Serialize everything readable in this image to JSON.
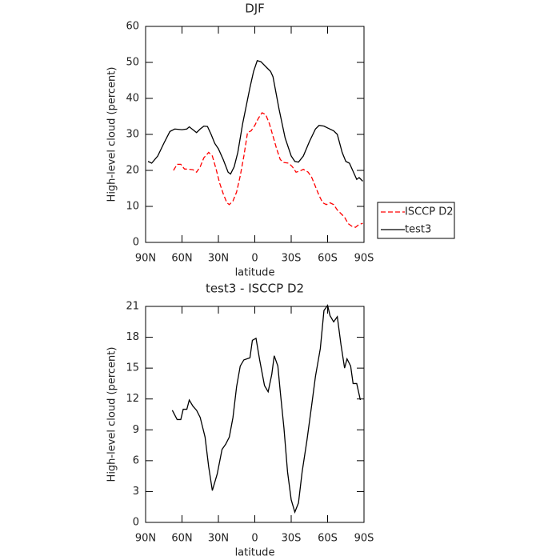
{
  "chart_data": [
    {
      "type": "line",
      "title": "DJF",
      "x_label": "latitude",
      "y_label": "High-level cloud (percent)",
      "xlim": [
        90,
        -90
      ],
      "xticks": [
        {
          "value": 90,
          "label": "90N"
        },
        {
          "value": 60,
          "label": "60N"
        },
        {
          "value": 30,
          "label": "30N"
        },
        0,
        {
          "value": -30,
          "label": "30S"
        },
        {
          "value": -60,
          "label": "60S"
        },
        {
          "value": -90,
          "label": "90S"
        }
      ],
      "ylim": [
        0,
        60
      ],
      "yticks": [
        0,
        10,
        20,
        30,
        40,
        50,
        60
      ],
      "legend": "right",
      "series": [
        {
          "name": "ISCCP D2",
          "color": "#ff0000",
          "dash": true,
          "x": [
            67,
            64,
            61,
            58,
            54,
            51,
            48,
            45,
            42,
            38,
            35,
            32,
            29,
            26,
            23,
            21,
            18,
            15,
            12,
            9,
            6,
            3,
            0,
            -3,
            -6,
            -9,
            -12,
            -15,
            -18,
            -21,
            -24,
            -28,
            -31,
            -34,
            -37,
            -40,
            -44,
            -47,
            -50,
            -53,
            -56,
            -59,
            -62,
            -65,
            -68,
            -71,
            -74,
            -77,
            -80,
            -83,
            -86,
            -89
          ],
          "values": [
            20,
            21.7,
            21.7,
            20.4,
            20.3,
            20.2,
            19.5,
            21,
            23.5,
            25,
            24,
            20.5,
            16.5,
            13.5,
            11,
            10.5,
            11.5,
            14,
            18.5,
            24,
            30.5,
            31,
            32.5,
            34.5,
            36,
            35.5,
            33,
            29.5,
            26,
            23,
            22.2,
            22,
            21,
            19.5,
            19.8,
            20.3,
            19.5,
            18,
            15.5,
            13,
            11,
            10.5,
            11,
            10.5,
            9,
            8,
            7,
            5.2,
            4.5,
            4.2,
            5,
            5.3
          ]
        },
        {
          "name": "test3",
          "color": "#000000",
          "dash": false,
          "x": [
            88,
            85,
            80,
            75,
            70,
            66,
            60,
            56,
            54,
            51,
            48,
            45,
            42,
            39,
            36,
            33,
            30,
            26,
            22,
            20,
            17,
            14,
            10,
            7,
            4,
            1,
            -2,
            -5,
            -10,
            -13,
            -15,
            -20,
            -25,
            -30,
            -33,
            -36,
            -40,
            -45,
            -50,
            -53,
            -57,
            -60,
            -65,
            -68,
            -72,
            -75,
            -78,
            -82,
            -84,
            -86,
            -89
          ],
          "values": [
            22.5,
            22,
            24,
            27.5,
            30.8,
            31.5,
            31.3,
            31.5,
            32.1,
            31.3,
            30.5,
            31.5,
            32.3,
            32.2,
            30,
            27.5,
            26,
            23,
            19.5,
            19,
            21,
            25,
            33,
            38,
            43,
            47.5,
            50.5,
            50.2,
            48.5,
            47.5,
            46,
            37,
            29,
            24,
            22.5,
            22.3,
            24,
            28,
            31.5,
            32.5,
            32.3,
            31.8,
            31,
            30,
            25,
            22.5,
            22,
            19,
            17.5,
            18,
            17
          ]
        }
      ]
    },
    {
      "type": "line",
      "title": "test3 - ISCCP D2",
      "x_label": "latitude",
      "y_label": "High-level cloud (percent)",
      "xlim": [
        90,
        -90
      ],
      "xticks": [
        {
          "value": 90,
          "label": "90N"
        },
        {
          "value": 60,
          "label": "60N"
        },
        {
          "value": 30,
          "label": "30N"
        },
        0,
        {
          "value": -30,
          "label": "30S"
        },
        {
          "value": -60,
          "label": "60S"
        },
        {
          "value": -90,
          "label": "90S"
        }
      ],
      "ylim": [
        0,
        21
      ],
      "yticks": [
        0,
        3,
        6,
        9,
        12,
        15,
        18,
        21
      ],
      "series": [
        {
          "color": "#000000",
          "dash": false,
          "x": [
            68,
            64,
            61,
            59,
            56,
            54,
            51,
            48,
            45,
            41,
            38,
            35,
            31,
            27,
            24,
            21,
            18,
            15,
            12,
            9,
            4,
            2,
            -1,
            -4,
            -8,
            -11,
            -14,
            -16,
            -19,
            -21,
            -24,
            -27,
            -30,
            -33,
            -36,
            -39,
            -43,
            -47,
            -50,
            -54,
            -57,
            -60,
            -62,
            -65,
            -68,
            -71,
            -74,
            -76,
            -79,
            -81,
            -84,
            -87
          ],
          "values": [
            10.9,
            10,
            10,
            11,
            11,
            11.9,
            11.3,
            10.9,
            10.2,
            8.3,
            5.4,
            3.1,
            4.7,
            7.1,
            7.6,
            8.3,
            10.2,
            13.2,
            15.2,
            15.8,
            16,
            17.7,
            17.9,
            15.8,
            13.3,
            12.7,
            14.4,
            16.2,
            15.2,
            12.7,
            9.2,
            4.9,
            2.2,
            1,
            1.9,
            4.9,
            8,
            11.5,
            14.2,
            16.9,
            20.6,
            21.1,
            20.1,
            19.5,
            20,
            17.3,
            15,
            15.9,
            15.2,
            13.5,
            13.5,
            11.9
          ]
        }
      ]
    }
  ]
}
